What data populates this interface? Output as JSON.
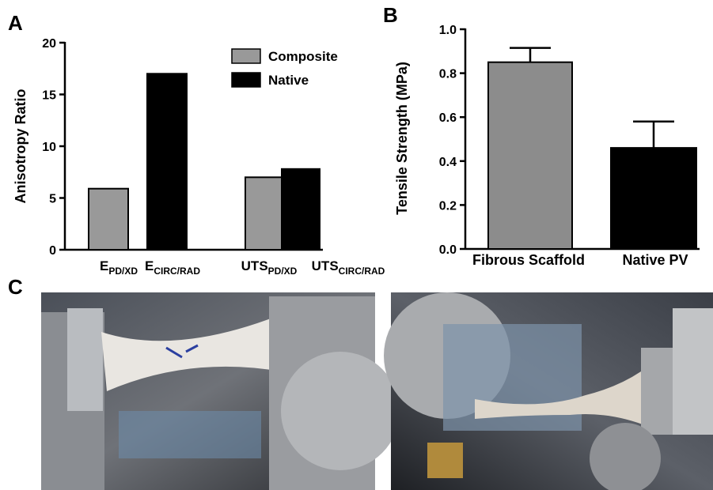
{
  "panel_labels": [
    "A",
    "B",
    "C"
  ],
  "chart_data": [
    {
      "type": "bar",
      "y_label": "Anisotropy Ratio",
      "categories": [
        {
          "text": "E",
          "subscript": "PD/XD"
        },
        {
          "text": "E",
          "subscript": "CIRC/RAD"
        },
        {
          "text": "UTS",
          "subscript": "PD/XD"
        },
        {
          "text": "UTS",
          "subscript": "CIRC/RAD"
        }
      ],
      "series": [
        {
          "name": "Composite",
          "color": "#999999",
          "values": [
            5.9,
            null,
            7.0,
            null
          ]
        },
        {
          "name": "Native",
          "color": "#000000",
          "values": [
            null,
            17.0,
            null,
            7.8
          ]
        }
      ],
      "ylim": [
        0,
        20
      ],
      "yticks": [
        0,
        5,
        10,
        15,
        20
      ],
      "legend": "top-right"
    },
    {
      "type": "bar",
      "y_label": "Tensile Strength (MPa)",
      "categories": [
        "Fibrous Scaffold",
        "Native PV"
      ],
      "values": [
        0.85,
        0.46
      ],
      "errors": [
        0.065,
        0.12
      ],
      "colors": [
        "#8c8c8c",
        "#000000"
      ],
      "ylim": [
        0,
        1.0
      ],
      "yticks": [
        {
          "value": 0,
          "label": "0.0"
        },
        0.2,
        0.4,
        0.6,
        0.8,
        {
          "value": 1.0,
          "label": "1.0"
        }
      ]
    }
  ]
}
